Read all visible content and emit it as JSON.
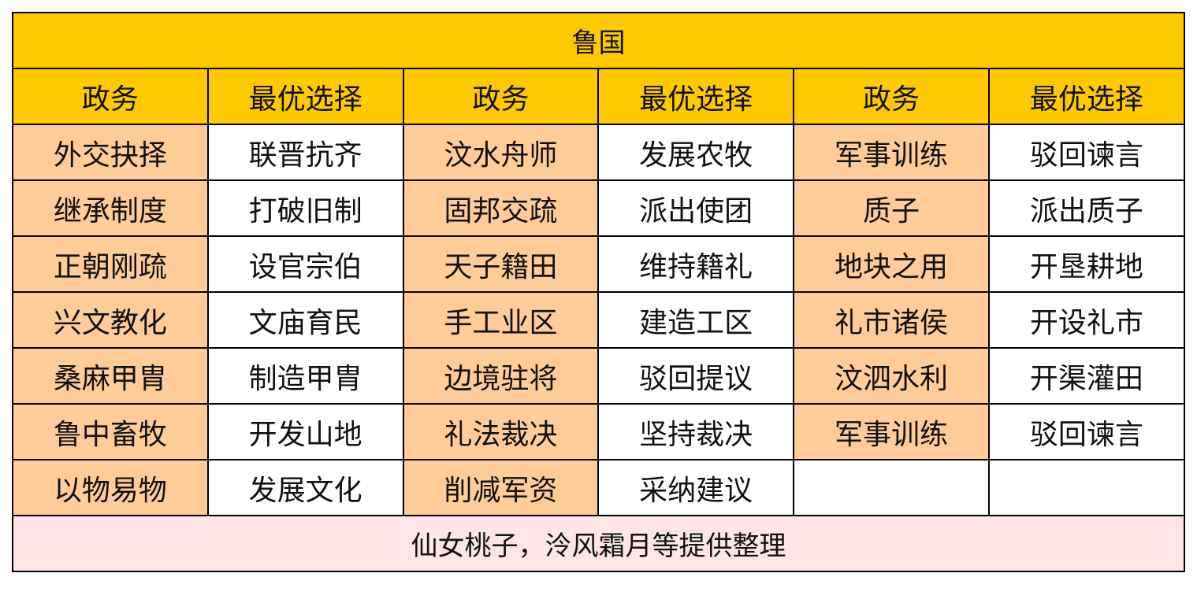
{
  "title": "鲁国",
  "headers": [
    "政务",
    "最优选择",
    "政务",
    "最优选择",
    "政务",
    "最优选择"
  ],
  "rows": [
    [
      "外交抉择",
      "联晋抗齐",
      "汶水舟师",
      "发展农牧",
      "军事训练",
      "驳回谏言"
    ],
    [
      "继承制度",
      "打破旧制",
      "固邦交疏",
      "派出使团",
      "质子",
      "派出质子"
    ],
    [
      "正朝刚疏",
      "设官宗伯",
      "天子籍田",
      "维持籍礼",
      "地块之用",
      "开垦耕地"
    ],
    [
      "兴文教化",
      "文庙育民",
      "手工业区",
      "建造工区",
      "礼市诸侯",
      "开设礼市"
    ],
    [
      "桑麻甲胄",
      "制造甲胄",
      "边境驻将",
      "驳回提议",
      "汶泗水利",
      "开渠灌田"
    ],
    [
      "鲁中畜牧",
      "开发山地",
      "礼法裁决",
      "坚持裁决",
      "军事训练",
      "驳回谏言"
    ],
    [
      "以物易物",
      "发展文化",
      "削减军资",
      "采纳建议",
      "",
      ""
    ]
  ],
  "footer": "仙女桃子，泠风霜月等提供整理",
  "colors": {
    "header": "#FFC900",
    "policy_cell": "#FFCC99",
    "choice_cell": "#FFFFFF",
    "footer": "#FFE5E5"
  }
}
